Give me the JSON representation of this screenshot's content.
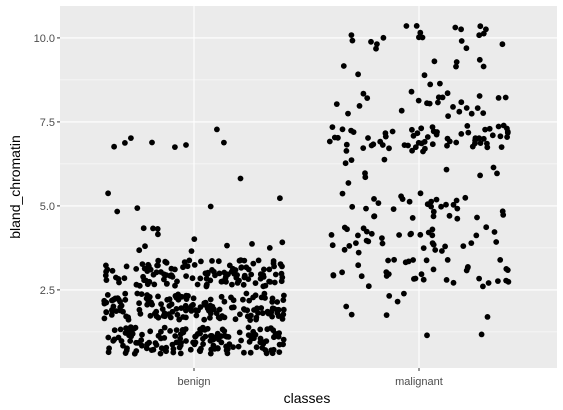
{
  "chart_data": {
    "type": "scatter",
    "title": "",
    "xlabel": "classes",
    "ylabel": "bland_chromatin",
    "x_categories": [
      "benign",
      "malignant"
    ],
    "ylim": [
      0.6,
      10.6
    ],
    "y_ticks": [
      2.5,
      5.0,
      7.5,
      10.0
    ],
    "y_tick_labels": [
      "2.5",
      "5.0",
      "7.5",
      "10.0"
    ],
    "jitter": {
      "x": 0.4,
      "y": 0.4
    },
    "grid": true,
    "legend": "none",
    "colors": {
      "panel": "#ebebeb",
      "grid": "#ffffff",
      "point": "#000000"
    },
    "class_levels": {
      "benign": [
        {
          "level": 1,
          "count": 150
        },
        {
          "level": 2,
          "count": 150
        },
        {
          "level": 3,
          "count": 125
        },
        {
          "level": 4,
          "count": 12
        },
        {
          "level": 5,
          "count": 5
        },
        {
          "level": 6,
          "count": 1
        },
        {
          "level": 7,
          "count": 8
        }
      ],
      "malignant": [
        {
          "level": 1,
          "count": 2
        },
        {
          "level": 2,
          "count": 7
        },
        {
          "level": 3,
          "count": 35
        },
        {
          "level": 4,
          "count": 35
        },
        {
          "level": 5,
          "count": 30
        },
        {
          "level": 6,
          "count": 10
        },
        {
          "level": 7,
          "count": 65
        },
        {
          "level": 8,
          "count": 25
        },
        {
          "level": 9,
          "count": 10
        },
        {
          "level": 10,
          "count": 20
        }
      ]
    }
  }
}
